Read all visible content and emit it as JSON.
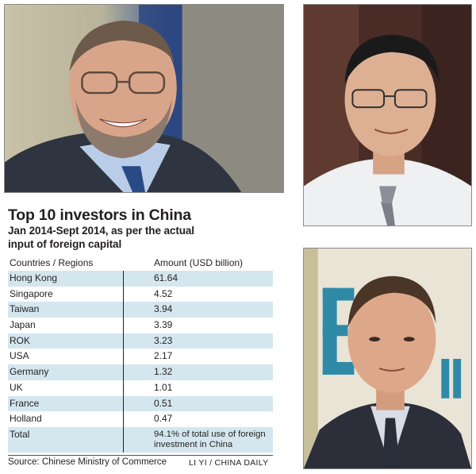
{
  "infographic": {
    "title": "Top 10 investors in China",
    "subtitle_line1": "Jan 2014-Sept 2014, as per the actual",
    "subtitle_line2": "input of foreign capital",
    "table": {
      "headers": [
        "Countries / Regions",
        "Amount (USD billion)"
      ],
      "rows": [
        {
          "name": "Hong Kong",
          "value": "61.64"
        },
        {
          "name": "Singapore",
          "value": "4.52"
        },
        {
          "name": "Taiwan",
          "value": "3.94"
        },
        {
          "name": "Japan",
          "value": "3.39"
        },
        {
          "name": "ROK",
          "value": "3.23"
        },
        {
          "name": "USA",
          "value": "2.17"
        },
        {
          "name": "Germany",
          "value": "1.32"
        },
        {
          "name": "UK",
          "value": "1.01"
        },
        {
          "name": "France",
          "value": "0.51"
        },
        {
          "name": "Holland",
          "value": "0.47"
        }
      ],
      "total": {
        "name": "Total",
        "value": "94.1% of total use of foreign investment in China"
      }
    },
    "source": "Source: Chinese Ministry of Commerce",
    "credit": "LI YI / CHINA DAILY"
  },
  "colors": {
    "row_shade": "#d4e7ef",
    "text": "#231f20"
  }
}
